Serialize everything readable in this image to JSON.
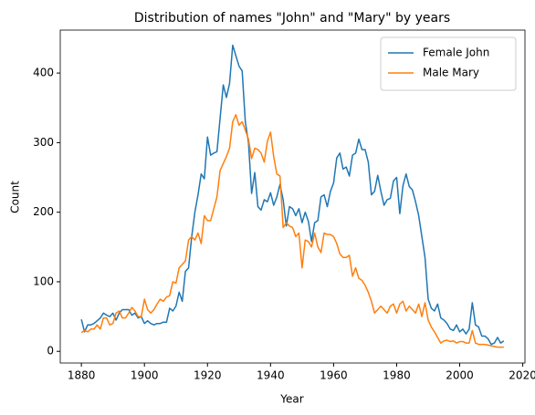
{
  "chart_data": {
    "type": "line",
    "title": "Distribution of names \"John\" and \"Mary\" by years",
    "xlabel": "Year",
    "ylabel": "Count",
    "x": [
      1880,
      1881,
      1882,
      1883,
      1884,
      1885,
      1886,
      1887,
      1888,
      1889,
      1890,
      1891,
      1892,
      1893,
      1894,
      1895,
      1896,
      1897,
      1898,
      1899,
      1900,
      1901,
      1902,
      1903,
      1904,
      1905,
      1906,
      1907,
      1908,
      1909,
      1910,
      1911,
      1912,
      1913,
      1914,
      1915,
      1916,
      1917,
      1918,
      1919,
      1920,
      1921,
      1922,
      1923,
      1924,
      1925,
      1926,
      1927,
      1928,
      1929,
      1930,
      1931,
      1932,
      1933,
      1934,
      1935,
      1936,
      1937,
      1938,
      1939,
      1940,
      1941,
      1942,
      1943,
      1944,
      1945,
      1946,
      1947,
      1948,
      1949,
      1950,
      1951,
      1952,
      1953,
      1954,
      1955,
      1956,
      1957,
      1958,
      1959,
      1960,
      1961,
      1962,
      1963,
      1964,
      1965,
      1966,
      1967,
      1968,
      1969,
      1970,
      1971,
      1972,
      1973,
      1974,
      1975,
      1976,
      1977,
      1978,
      1979,
      1980,
      1981,
      1982,
      1983,
      1984,
      1985,
      1986,
      1987,
      1988,
      1989,
      1990,
      1991,
      1992,
      1993,
      1994,
      1995,
      1996,
      1997,
      1998,
      1999,
      2000,
      2001,
      2002,
      2003,
      2004,
      2005,
      2006,
      2007,
      2008,
      2009,
      2010,
      2011,
      2012,
      2013,
      2014
    ],
    "series": [
      {
        "name": "Female John",
        "color": "#1f77b4",
        "values": [
          46,
          28,
          38,
          38,
          40,
          44,
          48,
          55,
          52,
          50,
          55,
          45,
          55,
          60,
          60,
          60,
          52,
          55,
          48,
          50,
          40,
          44,
          40,
          38,
          40,
          40,
          42,
          42,
          62,
          58,
          65,
          85,
          72,
          115,
          120,
          165,
          200,
          225,
          255,
          248,
          308,
          282,
          285,
          287,
          335,
          383,
          365,
          385,
          440,
          425,
          410,
          403,
          330,
          300,
          227,
          257,
          208,
          203,
          218,
          215,
          228,
          210,
          222,
          240,
          218,
          180,
          208,
          205,
          195,
          205,
          185,
          200,
          187,
          158,
          185,
          188,
          222,
          225,
          208,
          230,
          242,
          278,
          285,
          262,
          265,
          252,
          282,
          285,
          305,
          290,
          290,
          272,
          225,
          230,
          253,
          230,
          210,
          218,
          220,
          245,
          250,
          198,
          238,
          255,
          237,
          232,
          215,
          195,
          165,
          135,
          75,
          62,
          58,
          68,
          48,
          45,
          40,
          32,
          30,
          38,
          28,
          32,
          25,
          32,
          70,
          38,
          35,
          22,
          22,
          18,
          10,
          12,
          20,
          12,
          15
        ]
      },
      {
        "name": "Male Mary",
        "color": "#ff7f0e",
        "values": [
          27,
          30,
          28,
          32,
          32,
          38,
          32,
          48,
          48,
          38,
          40,
          55,
          58,
          48,
          48,
          55,
          63,
          58,
          50,
          50,
          75,
          60,
          55,
          60,
          68,
          75,
          72,
          78,
          80,
          100,
          98,
          120,
          125,
          130,
          160,
          165,
          160,
          170,
          155,
          195,
          188,
          188,
          205,
          222,
          260,
          270,
          280,
          292,
          330,
          340,
          325,
          330,
          318,
          305,
          277,
          292,
          290,
          285,
          272,
          302,
          315,
          280,
          255,
          252,
          178,
          185,
          180,
          178,
          165,
          170,
          120,
          160,
          158,
          150,
          170,
          150,
          142,
          170,
          168,
          168,
          165,
          155,
          140,
          135,
          135,
          138,
          108,
          120,
          105,
          102,
          95,
          85,
          72,
          55,
          60,
          65,
          60,
          55,
          65,
          68,
          55,
          68,
          72,
          58,
          65,
          60,
          55,
          68,
          50,
          70,
          45,
          35,
          28,
          20,
          12,
          15,
          16,
          14,
          15,
          12,
          14,
          14,
          12,
          12,
          30,
          12,
          10,
          10,
          10,
          9,
          8,
          7,
          6,
          6,
          6
        ]
      }
    ],
    "xlim": [
      1873.3,
      2020.7
    ],
    "xticks": [
      1880,
      1900,
      1920,
      1940,
      1960,
      1980,
      2000,
      2020
    ],
    "ylim": [
      -16.75,
      461.75
    ],
    "yticks": [
      0,
      100,
      200,
      300,
      400
    ],
    "legend": "upper right"
  }
}
